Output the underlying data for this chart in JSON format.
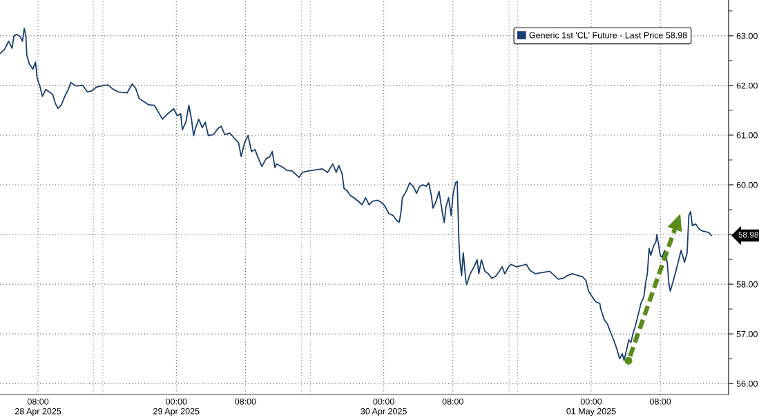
{
  "chart_data": {
    "type": "line",
    "x": [
      "2025-04-28T03:36",
      "2025-04-28T04:06",
      "2025-04-28T04:36",
      "2025-04-28T05:00",
      "2025-04-28T05:12",
      "2025-04-28T05:30",
      "2025-04-28T05:54",
      "2025-04-28T06:12",
      "2025-04-28T06:24",
      "2025-04-28T06:36",
      "2025-04-28T06:42",
      "2025-04-28T07:00",
      "2025-04-28T07:24",
      "2025-04-28T07:42",
      "2025-04-28T07:54",
      "2025-04-28T08:15",
      "2025-04-28T08:30",
      "2025-04-28T08:54",
      "2025-04-28T09:18",
      "2025-04-28T09:42",
      "2025-04-28T10:00",
      "2025-04-28T10:18",
      "2025-04-28T10:42",
      "2025-04-28T11:06",
      "2025-04-28T11:30",
      "2025-04-28T11:48",
      "2025-04-28T12:21",
      "2025-04-28T13:12",
      "2025-04-28T13:42",
      "2025-04-28T14:12",
      "2025-04-28T14:48",
      "2025-04-28T15:36",
      "2025-04-28T16:06",
      "2025-04-28T16:42",
      "2025-04-28T17:18",
      "2025-04-28T18:18",
      "2025-04-28T18:54",
      "2025-04-28T19:18",
      "2025-04-28T19:42",
      "2025-04-28T20:48",
      "2025-04-28T21:27",
      "2025-04-28T21:54",
      "2025-04-28T22:24",
      "2025-04-28T23:00",
      "2025-04-28T23:42",
      "2025-04-29T00:06",
      "2025-04-29T00:30",
      "2025-04-29T00:42",
      "2025-04-29T01:06",
      "2025-04-29T01:27",
      "2025-04-29T01:45",
      "2025-04-29T02:00",
      "2025-04-29T02:12",
      "2025-04-29T02:36",
      "2025-04-29T03:00",
      "2025-04-29T03:21",
      "2025-04-29T03:42",
      "2025-04-29T04:18",
      "2025-04-29T04:48",
      "2025-04-29T05:12",
      "2025-04-29T05:36",
      "2025-04-29T06:12",
      "2025-04-29T06:42",
      "2025-04-29T07:12",
      "2025-04-29T07:30",
      "2025-04-29T07:54",
      "2025-04-29T08:18",
      "2025-04-29T08:42",
      "2025-04-29T09:06",
      "2025-04-29T09:30",
      "2025-04-29T09:54",
      "2025-04-29T10:24",
      "2025-04-29T10:48",
      "2025-04-29T11:06",
      "2025-04-29T11:24",
      "2025-04-29T11:36",
      "2025-04-29T12:21",
      "2025-04-29T12:48",
      "2025-04-29T13:24",
      "2025-04-29T14:12",
      "2025-04-29T14:36",
      "2025-04-29T15:18",
      "2025-04-29T16:54",
      "2025-04-29T17:30",
      "2025-04-29T18:06",
      "2025-04-29T18:30",
      "2025-04-29T18:48",
      "2025-04-29T19:12",
      "2025-04-29T19:24",
      "2025-04-29T19:48",
      "2025-04-29T20:06",
      "2025-04-29T20:33",
      "2025-04-29T21:30",
      "2025-04-29T21:54",
      "2025-04-29T22:18",
      "2025-04-29T22:42",
      "2025-04-29T23:18",
      "2025-04-29T23:42",
      "2025-04-30T00:06",
      "2025-04-30T00:36",
      "2025-04-30T01:06",
      "2025-04-30T01:30",
      "2025-04-30T01:48",
      "2025-04-30T02:00",
      "2025-04-30T02:09",
      "2025-04-30T02:36",
      "2025-04-30T03:00",
      "2025-04-30T03:24",
      "2025-04-30T03:48",
      "2025-04-30T04:09",
      "2025-04-30T04:30",
      "2025-04-30T04:54",
      "2025-04-30T05:12",
      "2025-04-30T05:30",
      "2025-04-30T05:42",
      "2025-04-30T06:06",
      "2025-04-30T06:24",
      "2025-04-30T06:48",
      "2025-04-30T07:00",
      "2025-04-30T07:12",
      "2025-04-30T07:30",
      "2025-04-30T07:48",
      "2025-04-30T08:00",
      "2025-04-30T08:18",
      "2025-04-30T08:30",
      "2025-04-30T08:42",
      "2025-04-30T08:48",
      "2025-04-30T09:00",
      "2025-04-30T09:12",
      "2025-04-30T09:30",
      "2025-04-30T09:36",
      "2025-04-30T10:00",
      "2025-04-30T10:27",
      "2025-04-30T10:48",
      "2025-04-30T11:00",
      "2025-04-30T11:18",
      "2025-04-30T11:42",
      "2025-04-30T12:06",
      "2025-04-30T12:30",
      "2025-04-30T12:54",
      "2025-04-30T13:18",
      "2025-04-30T13:42",
      "2025-04-30T14:00",
      "2025-04-30T14:27",
      "2025-04-30T14:42",
      "2025-04-30T15:21",
      "2025-04-30T16:30",
      "2025-04-30T16:54",
      "2025-04-30T17:33",
      "2025-04-30T19:12",
      "2025-04-30T20:12",
      "2025-04-30T20:48",
      "2025-04-30T21:12",
      "2025-04-30T21:48",
      "2025-04-30T23:00",
      "2025-04-30T23:24",
      "2025-04-30T23:42",
      "2025-05-01T00:06",
      "2025-05-01T00:30",
      "2025-05-01T01:00",
      "2025-05-01T01:06",
      "2025-05-01T01:30",
      "2025-05-01T01:54",
      "2025-05-01T02:12",
      "2025-05-01T02:36",
      "2025-05-01T03:00",
      "2025-05-01T03:18",
      "2025-05-01T03:36",
      "2025-05-01T03:48",
      "2025-05-01T04:06",
      "2025-05-01T04:21",
      "2025-05-01T04:36",
      "2025-05-01T04:54",
      "2025-05-01T05:06",
      "2025-05-01T05:30",
      "2025-05-01T05:45",
      "2025-05-01T06:06",
      "2025-05-01T06:18",
      "2025-05-01T06:30",
      "2025-05-01T06:42",
      "2025-05-01T06:54",
      "2025-05-01T07:12",
      "2025-05-01T07:30",
      "2025-05-01T07:36",
      "2025-05-01T08:00",
      "2025-05-01T08:12",
      "2025-05-01T08:30",
      "2025-05-01T08:48",
      "2025-05-01T09:00",
      "2025-05-01T09:09",
      "2025-05-01T09:30",
      "2025-05-01T09:48",
      "2025-05-01T10:00",
      "2025-05-01T10:24",
      "2025-05-01T10:48",
      "2025-05-01T11:06",
      "2025-05-01T11:18",
      "2025-05-01T11:30",
      "2025-05-01T11:42",
      "2025-05-01T12:06",
      "2025-05-01T12:30",
      "2025-05-01T12:51",
      "2025-05-01T13:36",
      "2025-05-01T13:54"
    ],
    "series": [
      {
        "name": "Generic 1st 'CL' Future - Last Price 58.98",
        "color": "#1a3e6e",
        "values": [
          62.64,
          62.72,
          62.89,
          62.75,
          62.99,
          63.03,
          62.99,
          62.89,
          63.15,
          62.99,
          62.61,
          62.43,
          62.33,
          62.47,
          62.15,
          61.96,
          61.78,
          61.92,
          61.87,
          61.82,
          61.64,
          61.54,
          61.61,
          61.78,
          61.92,
          62.06,
          61.99,
          62.0,
          61.87,
          61.89,
          61.97,
          62.0,
          62.01,
          61.92,
          61.87,
          61.85,
          62.03,
          61.94,
          61.74,
          61.61,
          61.6,
          61.47,
          61.32,
          61.43,
          61.53,
          61.39,
          61.43,
          61.11,
          61.26,
          61.6,
          61.32,
          60.99,
          61.13,
          61.32,
          61.15,
          61.26,
          60.99,
          61.01,
          61.13,
          61.18,
          61.01,
          61.04,
          60.94,
          60.85,
          60.57,
          60.85,
          60.99,
          60.67,
          60.71,
          60.53,
          60.37,
          60.53,
          60.56,
          60.67,
          60.35,
          60.42,
          60.35,
          60.29,
          60.28,
          60.15,
          60.25,
          60.28,
          60.32,
          60.25,
          60.42,
          60.25,
          60.39,
          60.21,
          59.93,
          59.87,
          59.79,
          59.74,
          59.6,
          59.74,
          59.6,
          59.67,
          59.69,
          59.65,
          59.58,
          59.42,
          59.38,
          59.28,
          59.25,
          59.46,
          59.74,
          59.87,
          60.04,
          59.97,
          59.83,
          59.97,
          60.0,
          59.97,
          60.04,
          59.79,
          59.53,
          59.69,
          59.87,
          59.42,
          59.24,
          59.56,
          59.74,
          59.38,
          59.79,
          60.04,
          60.07,
          58.86,
          58.49,
          58.17,
          58.63,
          58.07,
          57.99,
          58.21,
          58.35,
          58.49,
          58.21,
          58.49,
          58.26,
          58.21,
          58.12,
          58.15,
          58.24,
          58.35,
          58.21,
          58.35,
          58.4,
          58.35,
          58.4,
          58.28,
          58.21,
          58.26,
          58.1,
          58.12,
          58.17,
          58.21,
          58.15,
          58.07,
          57.86,
          57.75,
          57.65,
          57.61,
          57.51,
          57.29,
          57.19,
          57.05,
          56.88,
          56.68,
          56.5,
          56.6,
          56.47,
          56.68,
          56.88,
          56.83,
          57.05,
          57.15,
          57.43,
          57.61,
          57.75,
          58.03,
          58.21,
          58.72,
          58.58,
          58.76,
          58.86,
          59.0,
          58.58,
          58.54,
          58.68,
          58.44,
          57.99,
          57.86,
          58.07,
          58.26,
          58.4,
          58.68,
          58.44,
          58.63,
          59.38,
          59.46,
          59.18,
          59.21,
          59.11,
          59.07,
          59.04,
          58.98
        ]
      }
    ],
    "xlim": [
      "2025-04-28T03:36",
      "2025-05-01T15:54"
    ],
    "xticks": [
      {
        "value": "2025-04-28T08:00",
        "label": "08:00\n28 Apr 2025"
      },
      {
        "value": "2025-04-29T00:00",
        "label": "00:00\n29 Apr 2025"
      },
      {
        "value": "2025-04-29T08:00",
        "label": "08:00"
      },
      {
        "value": "2025-04-30T00:00",
        "label": "00:00\n30 Apr 2025"
      },
      {
        "value": "2025-04-30T08:00",
        "label": "08:00"
      },
      {
        "value": "2025-05-01T00:00",
        "label": "00:00\n01 May 2025"
      },
      {
        "value": "2025-05-01T08:00",
        "label": "08:00"
      }
    ],
    "ylim": [
      55.78,
      63.72
    ],
    "yticks": [
      {
        "value": 56,
        "label": "56.00"
      },
      {
        "value": 56.5,
        "label": null
      },
      {
        "value": 57,
        "label": "57.00"
      },
      {
        "value": 57.5,
        "label": null
      },
      {
        "value": 58,
        "label": "58.00"
      },
      {
        "value": 58.5,
        "label": null
      },
      {
        "value": 59,
        "label": null
      },
      {
        "value": 59.5,
        "label": null
      },
      {
        "value": 60,
        "label": "60.00"
      },
      {
        "value": 60.5,
        "label": null
      },
      {
        "value": 61,
        "label": "61.00"
      },
      {
        "value": 61.5,
        "label": null
      },
      {
        "value": 62,
        "label": "62.00"
      },
      {
        "value": 62.5,
        "label": null
      },
      {
        "value": 63,
        "label": "63.00"
      },
      {
        "value": 63.5,
        "label": null
      }
    ],
    "ref_lines": [
      {
        "axis": "x",
        "value": "2025-04-28T14:24",
        "color": "#808080",
        "line_style": "dotted"
      },
      {
        "axis": "x",
        "value": "2025-04-28T15:30",
        "color": "#808080",
        "line_style": "dotted"
      },
      {
        "axis": "x",
        "value": "2025-04-29T14:30",
        "color": "#808080",
        "line_style": "dotted"
      },
      {
        "axis": "x",
        "value": "2025-04-29T15:30",
        "color": "#808080",
        "line_style": "dotted"
      },
      {
        "axis": "x",
        "value": "2025-04-30T14:30",
        "color": "#808080",
        "line_style": "dotted"
      },
      {
        "axis": "x",
        "value": "2025-04-30T15:30",
        "color": "#808080",
        "line_style": "dotted"
      }
    ],
    "annotations": [
      "58.98"
    ],
    "grid": true,
    "legend": "top right",
    "line_style": "solid"
  }
}
